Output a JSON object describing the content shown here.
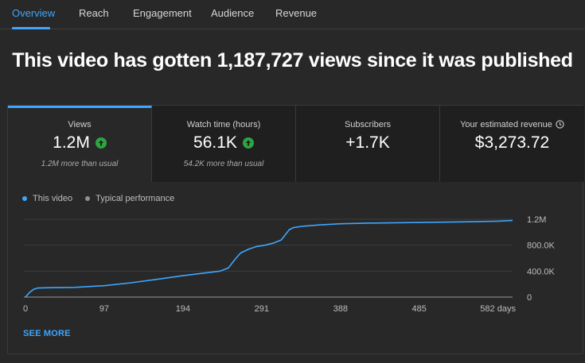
{
  "tabs": [
    {
      "label": "Overview",
      "active": true
    },
    {
      "label": "Reach",
      "active": false
    },
    {
      "label": "Engagement",
      "active": false
    },
    {
      "label": "Audience",
      "active": false
    },
    {
      "label": "Revenue",
      "active": false
    }
  ],
  "headline": "This video has gotten 1,187,727 views since it was published",
  "cards": [
    {
      "label": "Views",
      "value": "1.2M",
      "trend": "up",
      "sub": "1.2M more than usual"
    },
    {
      "label": "Watch time (hours)",
      "value": "56.1K",
      "trend": "up",
      "sub": "54.2K more than usual"
    },
    {
      "label": "Subscribers",
      "value": "+1.7K",
      "trend": "",
      "sub": ""
    },
    {
      "label": "Your estimated revenue",
      "value": "$3,273.72",
      "trend": "",
      "sub": "",
      "icon": "clock-icon"
    }
  ],
  "legend": {
    "series": "This video",
    "typical": "Typical performance"
  },
  "see_more": "SEE MORE",
  "colors": {
    "accent": "#3ea6ff",
    "up": "#2ba640",
    "typical": "#909090"
  },
  "chart_data": {
    "type": "line",
    "series": [
      {
        "name": "This video",
        "x": [
          0,
          5,
          10,
          15,
          30,
          60,
          97,
          130,
          160,
          194,
          220,
          240,
          250,
          258,
          265,
          275,
          285,
          295,
          305,
          315,
          320,
          325,
          330,
          340,
          360,
          388,
          420,
          485,
          540,
          582,
          600
        ],
        "values": [
          0,
          70000,
          120000,
          140000,
          145000,
          150000,
          175000,
          220000,
          270000,
          330000,
          370000,
          400000,
          450000,
          580000,
          680000,
          740000,
          780000,
          800000,
          830000,
          880000,
          960000,
          1040000,
          1070000,
          1090000,
          1110000,
          1130000,
          1140000,
          1150000,
          1160000,
          1170000,
          1180000
        ]
      }
    ],
    "x_ticks": [
      "0",
      "97",
      "194",
      "291",
      "388",
      "485",
      "582 days"
    ],
    "x_tick_values": [
      0,
      97,
      194,
      291,
      388,
      485,
      582
    ],
    "y_ticks": [
      "0",
      "400.0K",
      "800.0K",
      "1.2M"
    ],
    "y_tick_values": [
      0,
      400000,
      800000,
      1200000
    ],
    "xlim": [
      0,
      600
    ],
    "ylim": [
      0,
      1200000
    ],
    "xlabel": "",
    "ylabel": ""
  }
}
